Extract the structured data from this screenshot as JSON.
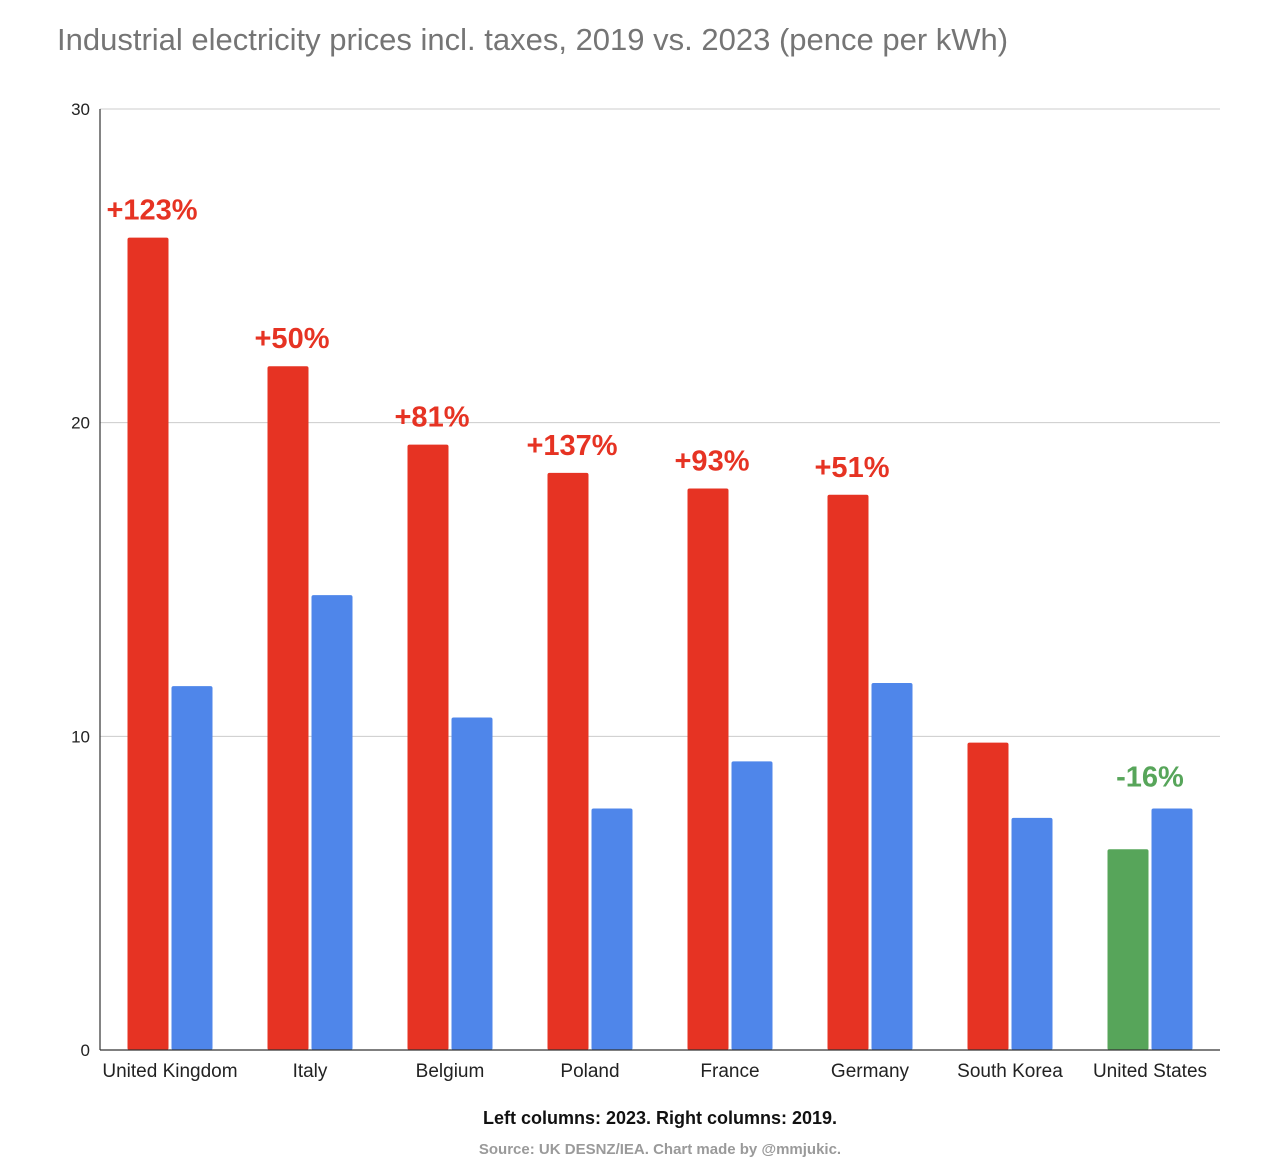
{
  "title": "Industrial electricity prices incl. taxes, 2019 vs. 2023 (pence per kWh)",
  "caption": "Left columns: 2023. Right columns: 2019.",
  "source": "Source: UK DESNZ/IEA. Chart made by @mmjukic.",
  "chart_data": {
    "type": "bar",
    "title": "Industrial electricity prices incl. taxes, 2019 vs. 2023 (pence per kWh)",
    "xlabel": "",
    "ylabel": "",
    "ylim": [
      0,
      30
    ],
    "yticks": [
      "0",
      "10",
      "20",
      "30"
    ],
    "grid": true,
    "categories": [
      "United Kingdom",
      "Italy",
      "Belgium",
      "Poland",
      "France",
      "Germany",
      "South Korea",
      "United States"
    ],
    "series": [
      {
        "values": [
          25.9,
          21.8,
          19.3,
          18.4,
          17.9,
          17.7,
          9.8,
          6.4
        ],
        "colors": [
          "#e63323",
          "#e63323",
          "#e63323",
          "#e63323",
          "#e63323",
          "#e63323",
          "#e63323",
          "#57a55a"
        ]
      },
      {
        "values": [
          11.6,
          14.5,
          10.6,
          7.7,
          9.2,
          11.7,
          7.4,
          7.7
        ],
        "colors": [
          "#4f86ea",
          "#4f86ea",
          "#4f86ea",
          "#4f86ea",
          "#4f86ea",
          "#4f86ea",
          "#4f86ea",
          "#4f86ea"
        ]
      }
    ],
    "annotations": [
      {
        "category": "United Kingdom",
        "text": "+123%",
        "color": "#e63323"
      },
      {
        "category": "Italy",
        "text": "+50%",
        "color": "#e63323"
      },
      {
        "category": "Belgium",
        "text": "+81%",
        "color": "#e63323"
      },
      {
        "category": "Poland",
        "text": "+137%",
        "color": "#e63323"
      },
      {
        "category": "France",
        "text": "+93%",
        "color": "#e63323"
      },
      {
        "category": "Germany",
        "text": "+51%",
        "color": "#e63323"
      },
      {
        "category": "United States",
        "text": "-16%",
        "color": "#57a55a"
      }
    ]
  }
}
